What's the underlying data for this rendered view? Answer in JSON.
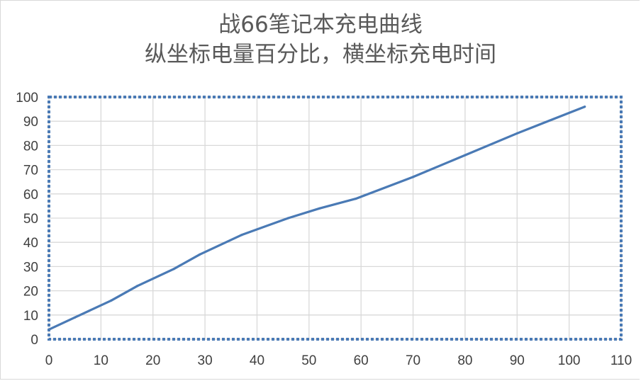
{
  "chart_data": {
    "type": "line",
    "title": "战66笔记本充电曲线",
    "subtitle": "纵坐标电量百分比，横坐标充电时间",
    "xlabel": "",
    "ylabel": "",
    "xlim": [
      0,
      110
    ],
    "ylim": [
      0,
      100
    ],
    "x_ticks": [
      "0",
      "10",
      "20",
      "30",
      "40",
      "50",
      "60",
      "70",
      "80",
      "90",
      "100",
      "110"
    ],
    "y_ticks": [
      "0",
      "10",
      "20",
      "30",
      "40",
      "50",
      "60",
      "70",
      "80",
      "90",
      "100"
    ],
    "grid": true,
    "legend": "none",
    "plot_area_border": "dotted",
    "colors": {
      "line": "#4a7ab5",
      "grid": "#d9d9d9",
      "plot_border": "#4a7ab5",
      "text": "#595959"
    },
    "series": [
      {
        "x": [
          0,
          5,
          12,
          17,
          24,
          29,
          37,
          46,
          52,
          59,
          70,
          80,
          90,
          103
        ],
        "y": [
          4,
          9,
          16,
          22,
          29,
          35,
          43,
          50,
          54,
          58,
          67,
          76,
          85,
          96
        ]
      }
    ]
  }
}
